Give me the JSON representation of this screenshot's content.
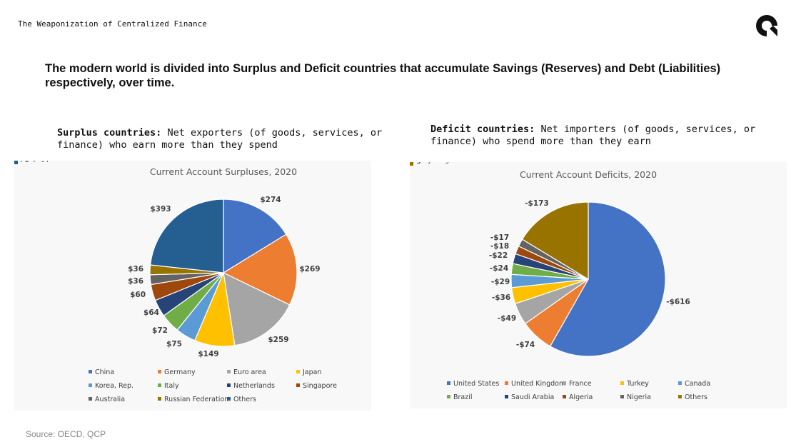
{
  "header": {
    "doc_title": "The Weaponization of Centralized Finance",
    "logo_icon": "q-logo-icon",
    "headline": "The modern world is divided into Surplus and Deficit countries that accumulate Savings (Reserves) and Debt (Liabilities) respectively, over time."
  },
  "surplus_desc": {
    "bold": "Surplus countries:",
    "text": " Net exporters (of goods, services, or finance) who earn more than they spend"
  },
  "deficit_desc": {
    "bold": "Deficit countries:",
    "text": " Net importers (of goods, services, or finance) who spend more than they earn"
  },
  "footer": {
    "source": "Source: OECD, QCP"
  },
  "chart_data": [
    {
      "type": "pie",
      "title": "Current Account Surpluses, 2020",
      "legend_position": "bottom",
      "categories": [
        "China",
        "Germany",
        "Euro area",
        "Japan",
        "Korea, Rep.",
        "Italy",
        "Netherlands",
        "Singapore",
        "Australia",
        "Russian Federation",
        "Others"
      ],
      "values": [
        274,
        269,
        259,
        149,
        75,
        72,
        64,
        60,
        36,
        36,
        393
      ],
      "labels": [
        "$274",
        "$269",
        "$259",
        "$149",
        "$75",
        "$72",
        "$64",
        "$60",
        "$36",
        "$36",
        "$393"
      ],
      "colors": [
        "#4472C4",
        "#ED7D31",
        "#A5A5A5",
        "#FFC000",
        "#5B9BD5",
        "#70AD47",
        "#264478",
        "#9E480E",
        "#636363",
        "#997300",
        "#255E91"
      ]
    },
    {
      "type": "pie",
      "title": "Current Account Deficits, 2020",
      "legend_position": "bottom",
      "categories": [
        "United States",
        "United Kingdom",
        "France",
        "Turkey",
        "Canada",
        "Brazil",
        "Saudi Arabia",
        "Algeria",
        "Nigeria",
        "Others"
      ],
      "values": [
        -616,
        -74,
        -49,
        -36,
        -29,
        -24,
        -22,
        -18,
        -17,
        -173
      ],
      "labels": [
        "-$616",
        "-$74",
        "-$49",
        "-$36",
        "-$29",
        "-$24",
        "-$22",
        "-$18",
        "-$17",
        "-$173"
      ],
      "colors": [
        "#4472C4",
        "#ED7D31",
        "#A5A5A5",
        "#FFC000",
        "#5B9BD5",
        "#70AD47",
        "#264478",
        "#9E480E",
        "#636363",
        "#997300"
      ]
    }
  ]
}
